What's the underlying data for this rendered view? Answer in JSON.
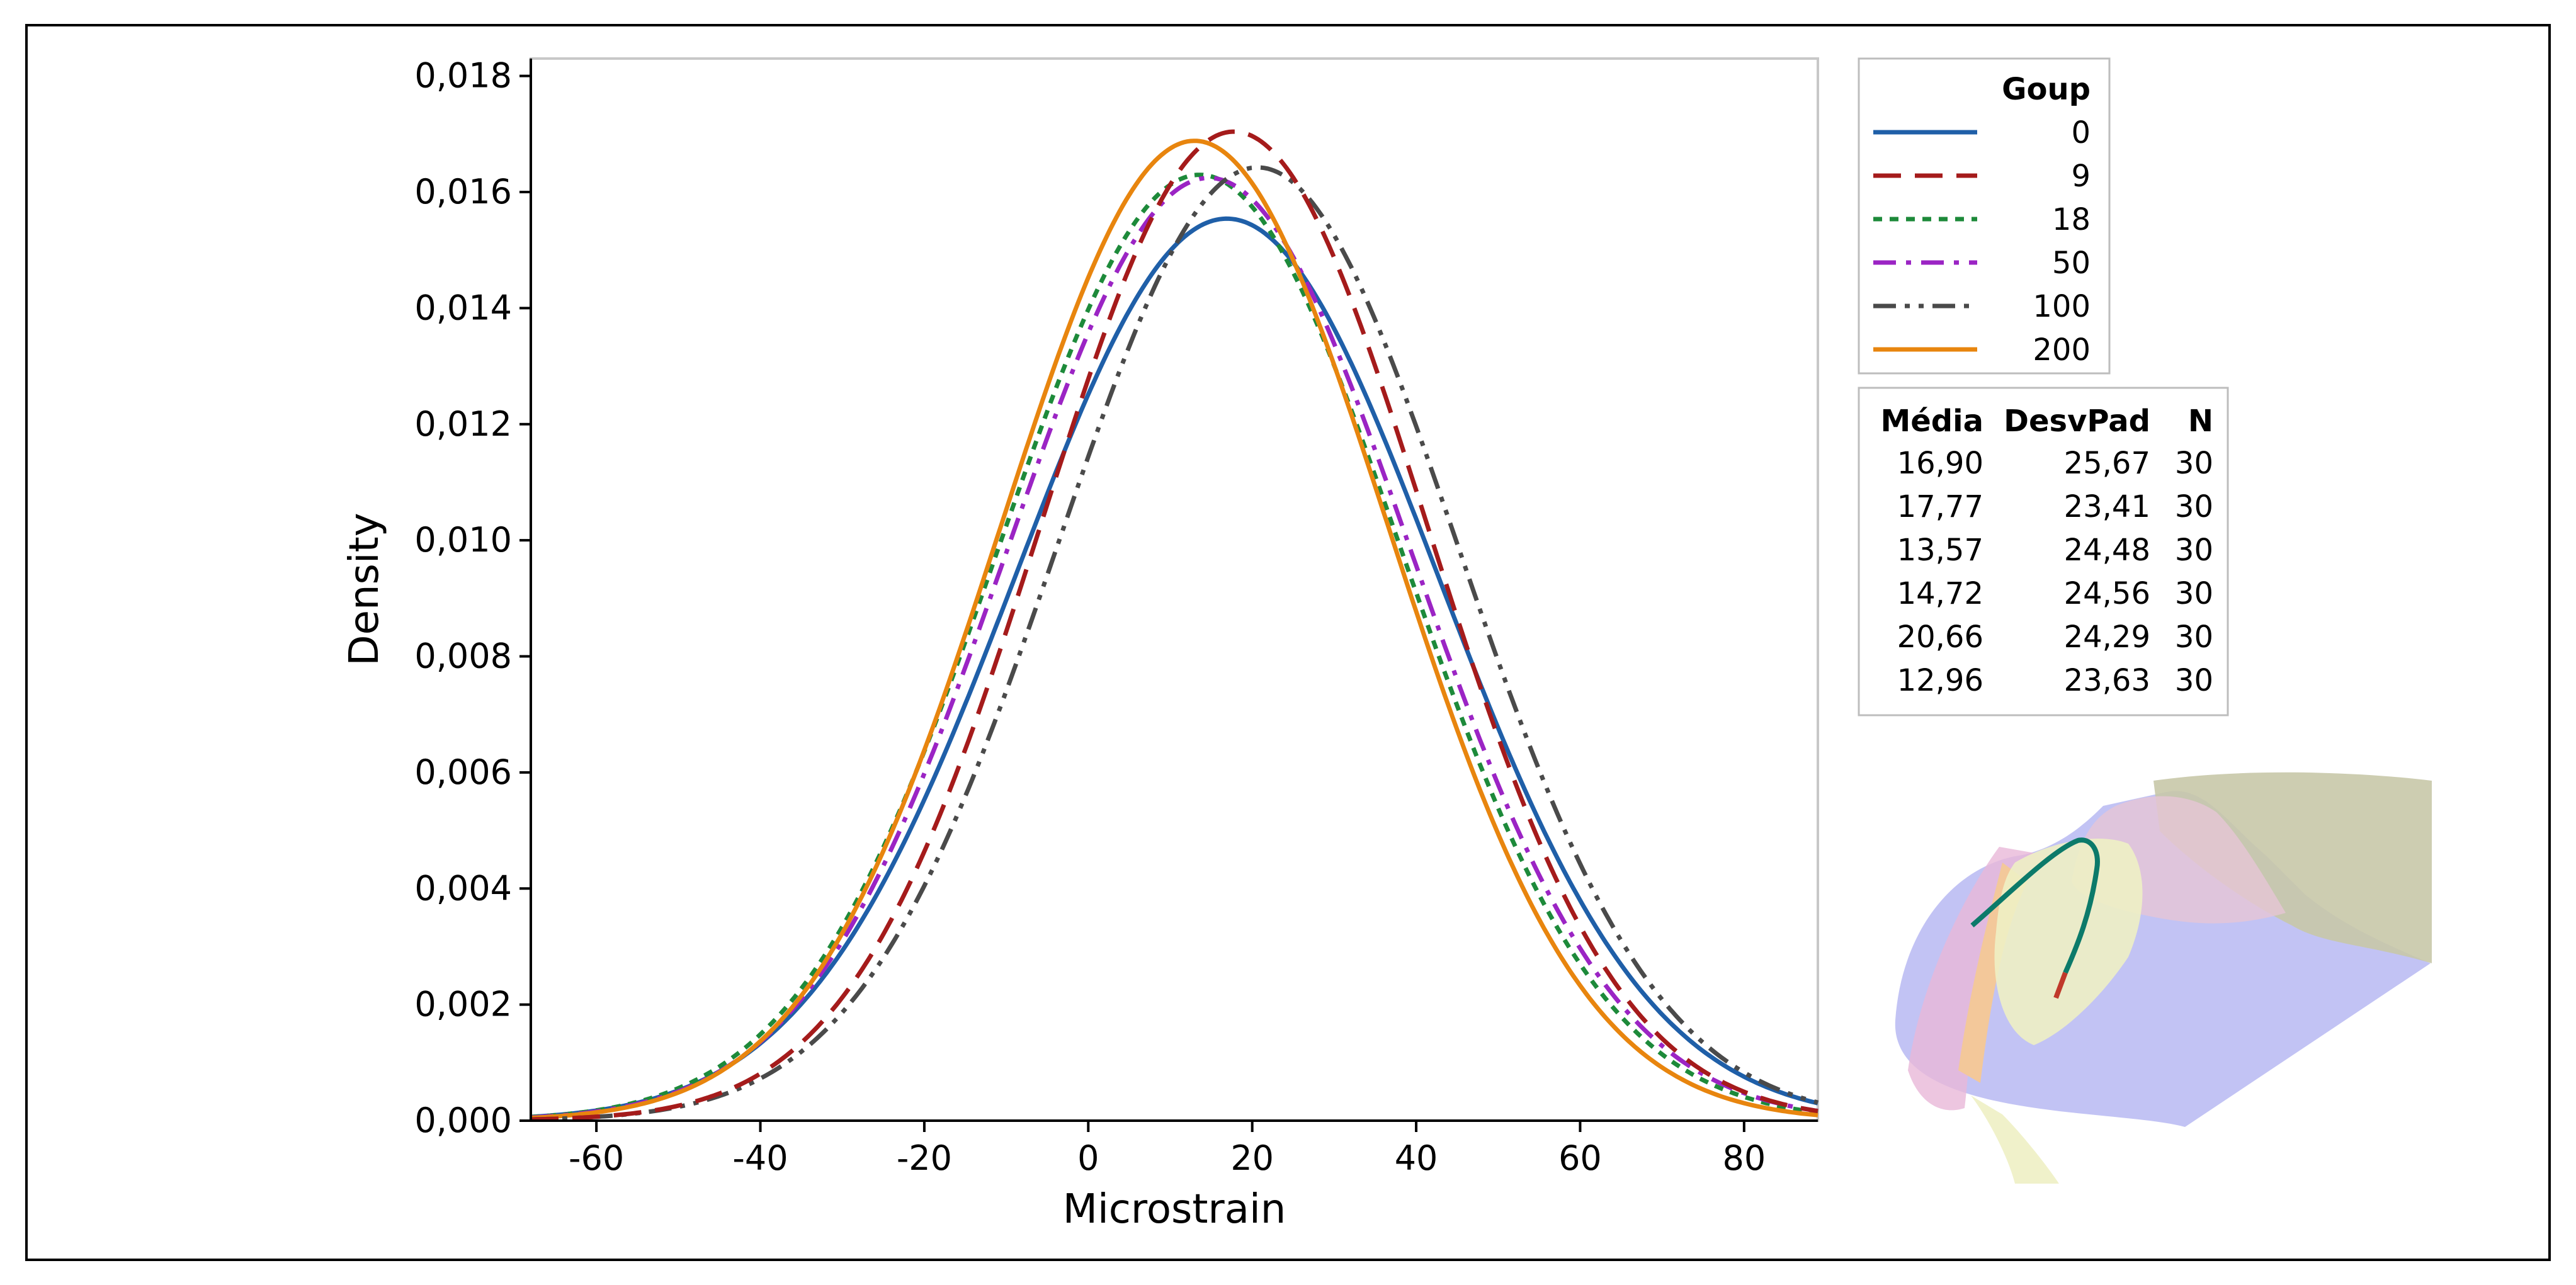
{
  "chart_data": {
    "type": "line",
    "title": "",
    "xlabel": "Microstrain",
    "ylabel": "Density",
    "xlim": [
      -68,
      89
    ],
    "ylim": [
      0,
      0.0183
    ],
    "xticks": [
      -60,
      -40,
      -20,
      0,
      20,
      40,
      60,
      80
    ],
    "xtick_labels": [
      "-60",
      "-40",
      "-20",
      "0",
      "20",
      "40",
      "60",
      "80"
    ],
    "yticks": [
      0,
      0.002,
      0.004,
      0.006,
      0.008,
      0.01,
      0.012,
      0.014,
      0.016,
      0.018
    ],
    "ytick_labels": [
      "0,000",
      "0,002",
      "0,004",
      "0,006",
      "0,008",
      "0,010",
      "0,012",
      "0,014",
      "0,016",
      "0,018"
    ],
    "grid": false,
    "legend_title": "Goup",
    "legend_position": "right",
    "series": [
      {
        "name": "0",
        "mean": 16.9,
        "sd": 25.67,
        "n": 30,
        "color": "#1f5fa8",
        "dash": "solid"
      },
      {
        "name": "9",
        "mean": 17.77,
        "sd": 23.41,
        "n": 30,
        "color": "#a51b1b",
        "dash": "dash"
      },
      {
        "name": "18",
        "mean": 13.57,
        "sd": 24.48,
        "n": 30,
        "color": "#1d8a3a",
        "dash": "dot"
      },
      {
        "name": "50",
        "mean": 14.72,
        "sd": 24.56,
        "n": 30,
        "color": "#9b24c4",
        "dash": "dashdot"
      },
      {
        "name": "100",
        "mean": 20.66,
        "sd": 24.29,
        "n": 30,
        "color": "#4a4a4a",
        "dash": "dashdotdot"
      },
      {
        "name": "200",
        "mean": 12.96,
        "sd": 23.63,
        "n": 30,
        "color": "#e8850e",
        "dash": "solid"
      }
    ],
    "stats_table": {
      "headers": [
        "Média",
        "DesvPad",
        "N"
      ],
      "rows": [
        [
          "16,90",
          "25,67",
          "30"
        ],
        [
          "17,77",
          "23,41",
          "30"
        ],
        [
          "13,57",
          "24,48",
          "30"
        ],
        [
          "14,72",
          "24,56",
          "30"
        ],
        [
          "20,66",
          "24,29",
          "30"
        ],
        [
          "12,96",
          "23,63",
          "30"
        ]
      ]
    }
  }
}
